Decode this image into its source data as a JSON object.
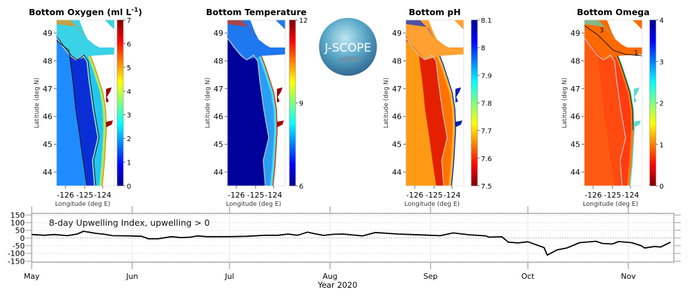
{
  "logo": {
    "text": "J-SCOPE"
  },
  "chart_data": [
    {
      "type": "heatmap",
      "title": "Bottom Oxygen (ml L-1)",
      "title_main": "Bottom Oxygen (ml L",
      "title_sup": "-1",
      "title_end": ")",
      "xlabel": "Longitude (deg E)",
      "ylabel": "Latitude (deg N)",
      "xticks": [
        "-126",
        "-125",
        "-124"
      ],
      "yticks": [
        "49",
        "48",
        "47",
        "46",
        "45",
        "44"
      ],
      "colorbar": {
        "min": 0,
        "max": 7,
        "ticks": [
          "7",
          "6",
          "5",
          "4",
          "3",
          "2",
          "1",
          "0"
        ],
        "reversed": false
      },
      "colors": {
        "offshore": "#1e8cff",
        "mid": "#0a2ed6",
        "shelf": "#22c6f0",
        "near": "#9af070",
        "strait": "#3ad2e6",
        "river": "#9a0000",
        "edge": "#ff8a00"
      },
      "contour_labels": []
    },
    {
      "type": "heatmap",
      "title": "Bottom Temperature",
      "xlabel": "Longitude (deg E)",
      "ylabel": "Latitude (deg N)",
      "xticks": [
        "-126",
        "-125",
        "-124"
      ],
      "yticks": [
        "49",
        "48",
        "47",
        "46",
        "45",
        "44"
      ],
      "colorbar": {
        "min": 6,
        "max": 12,
        "ticks": [
          "12",
          "9",
          "6"
        ],
        "reversed": false
      },
      "colors": {
        "offshore": "#00009a",
        "mid": "#00009a",
        "shelf": "#2a9ef5",
        "near": "#48dcf0",
        "strait": "#1e78f0",
        "river": "#a00000",
        "edge": "#e03000"
      },
      "contour_labels": []
    },
    {
      "type": "heatmap",
      "title": "Bottom pH",
      "xlabel": "Longitude (deg E)",
      "ylabel": "Latitude (deg N)",
      "xticks": [
        "-126",
        "-125",
        "-124"
      ],
      "yticks": [
        "49",
        "48",
        "47",
        "46",
        "45",
        "44"
      ],
      "colorbar": {
        "min": 7.5,
        "max": 8.1,
        "ticks": [
          "8.1",
          "8",
          "7.9",
          "7.8",
          "7.7",
          "7.6",
          "7.5"
        ],
        "reversed": true
      },
      "colors": {
        "offshore": "#ff9a14",
        "mid": "#e42000",
        "shelf": "#ff7400",
        "near": "#ffb420",
        "strait": "#ffa030",
        "river": "#0020b0",
        "edge": "#0030d0"
      },
      "contour_labels": []
    },
    {
      "type": "heatmap",
      "title": "Bottom Omega",
      "xlabel": "Longitude (deg E)",
      "ylabel": "Latitude (deg N)",
      "xticks": [
        "-126",
        "-125",
        "-124"
      ],
      "yticks": [
        "49",
        "48",
        "47",
        "46",
        "45",
        "44"
      ],
      "colorbar": {
        "min": 0,
        "max": 4,
        "ticks": [
          "4",
          "3",
          "2",
          "1",
          "0"
        ],
        "reversed": true
      },
      "colors": {
        "offshore": "#ff5a12",
        "mid": "#ff4a10",
        "shelf": "#ff3c10",
        "near": "#ff7a10",
        "strait": "#ff6a00",
        "river": "#5adcc8",
        "edge": "#50d8c0"
      },
      "contour_labels": [
        "3",
        "1"
      ]
    },
    {
      "type": "line",
      "annotation": "8-day Upwelling Index, upwelling > 0",
      "xlabel": "Year 2020",
      "ylabel": "",
      "ylim": [
        -160,
        160
      ],
      "yticks": [
        150,
        100,
        50,
        0,
        -50,
        -100,
        -150
      ],
      "xlim": [
        "2020-05-01",
        "2020-11-15"
      ],
      "xticks": [
        {
          "label": "May",
          "date": "2020-05-01"
        },
        {
          "label": "Jun",
          "date": "2020-06-01"
        },
        {
          "label": "Jul",
          "date": "2020-07-01"
        },
        {
          "label": "Aug",
          "date": "2020-08-01"
        },
        {
          "label": "Sep",
          "date": "2020-09-01"
        },
        {
          "label": "Oct",
          "date": "2020-10-01"
        },
        {
          "label": "Nov",
          "date": "2020-11-01"
        }
      ],
      "grid": true,
      "reference_line": 0,
      "series": [
        {
          "x": [
            "2020-05-01",
            "2020-05-05",
            "2020-05-08",
            "2020-05-12",
            "2020-05-15",
            "2020-05-17",
            "2020-05-21",
            "2020-05-23",
            "2020-05-26",
            "2020-05-31",
            "2020-06-04",
            "2020-06-06",
            "2020-06-09",
            "2020-06-13",
            "2020-06-16",
            "2020-06-19",
            "2020-06-21",
            "2020-06-24",
            "2020-07-01",
            "2020-07-06",
            "2020-07-12",
            "2020-07-16",
            "2020-07-19",
            "2020-07-22",
            "2020-07-25",
            "2020-07-27",
            "2020-07-30",
            "2020-08-02",
            "2020-08-05",
            "2020-08-11",
            "2020-08-15",
            "2020-08-22",
            "2020-08-26",
            "2020-09-01",
            "2020-09-04",
            "2020-09-08",
            "2020-09-13",
            "2020-09-18",
            "2020-09-19",
            "2020-09-23",
            "2020-09-25",
            "2020-09-28",
            "2020-10-01",
            "2020-10-04",
            "2020-10-06",
            "2020-10-07",
            "2020-10-10",
            "2020-10-13",
            "2020-10-17",
            "2020-10-22",
            "2020-10-24",
            "2020-10-27",
            "2020-10-29",
            "2020-11-02",
            "2020-11-05",
            "2020-11-06",
            "2020-11-09",
            "2020-11-11",
            "2020-11-14"
          ],
          "y": [
            23,
            18,
            23,
            15,
            26,
            44,
            30,
            26,
            15,
            14,
            11,
            -5,
            -5,
            9,
            3,
            6,
            14,
            9,
            9,
            11,
            18,
            18,
            26,
            18,
            38,
            29,
            17,
            24,
            26,
            14,
            36,
            26,
            23,
            18,
            15,
            33,
            21,
            14,
            6,
            8,
            -27,
            -32,
            -24,
            -47,
            -62,
            -111,
            -77,
            -65,
            -30,
            -21,
            -35,
            -39,
            -23,
            -30,
            -50,
            -65,
            -55,
            -58,
            -27
          ]
        }
      ]
    }
  ]
}
